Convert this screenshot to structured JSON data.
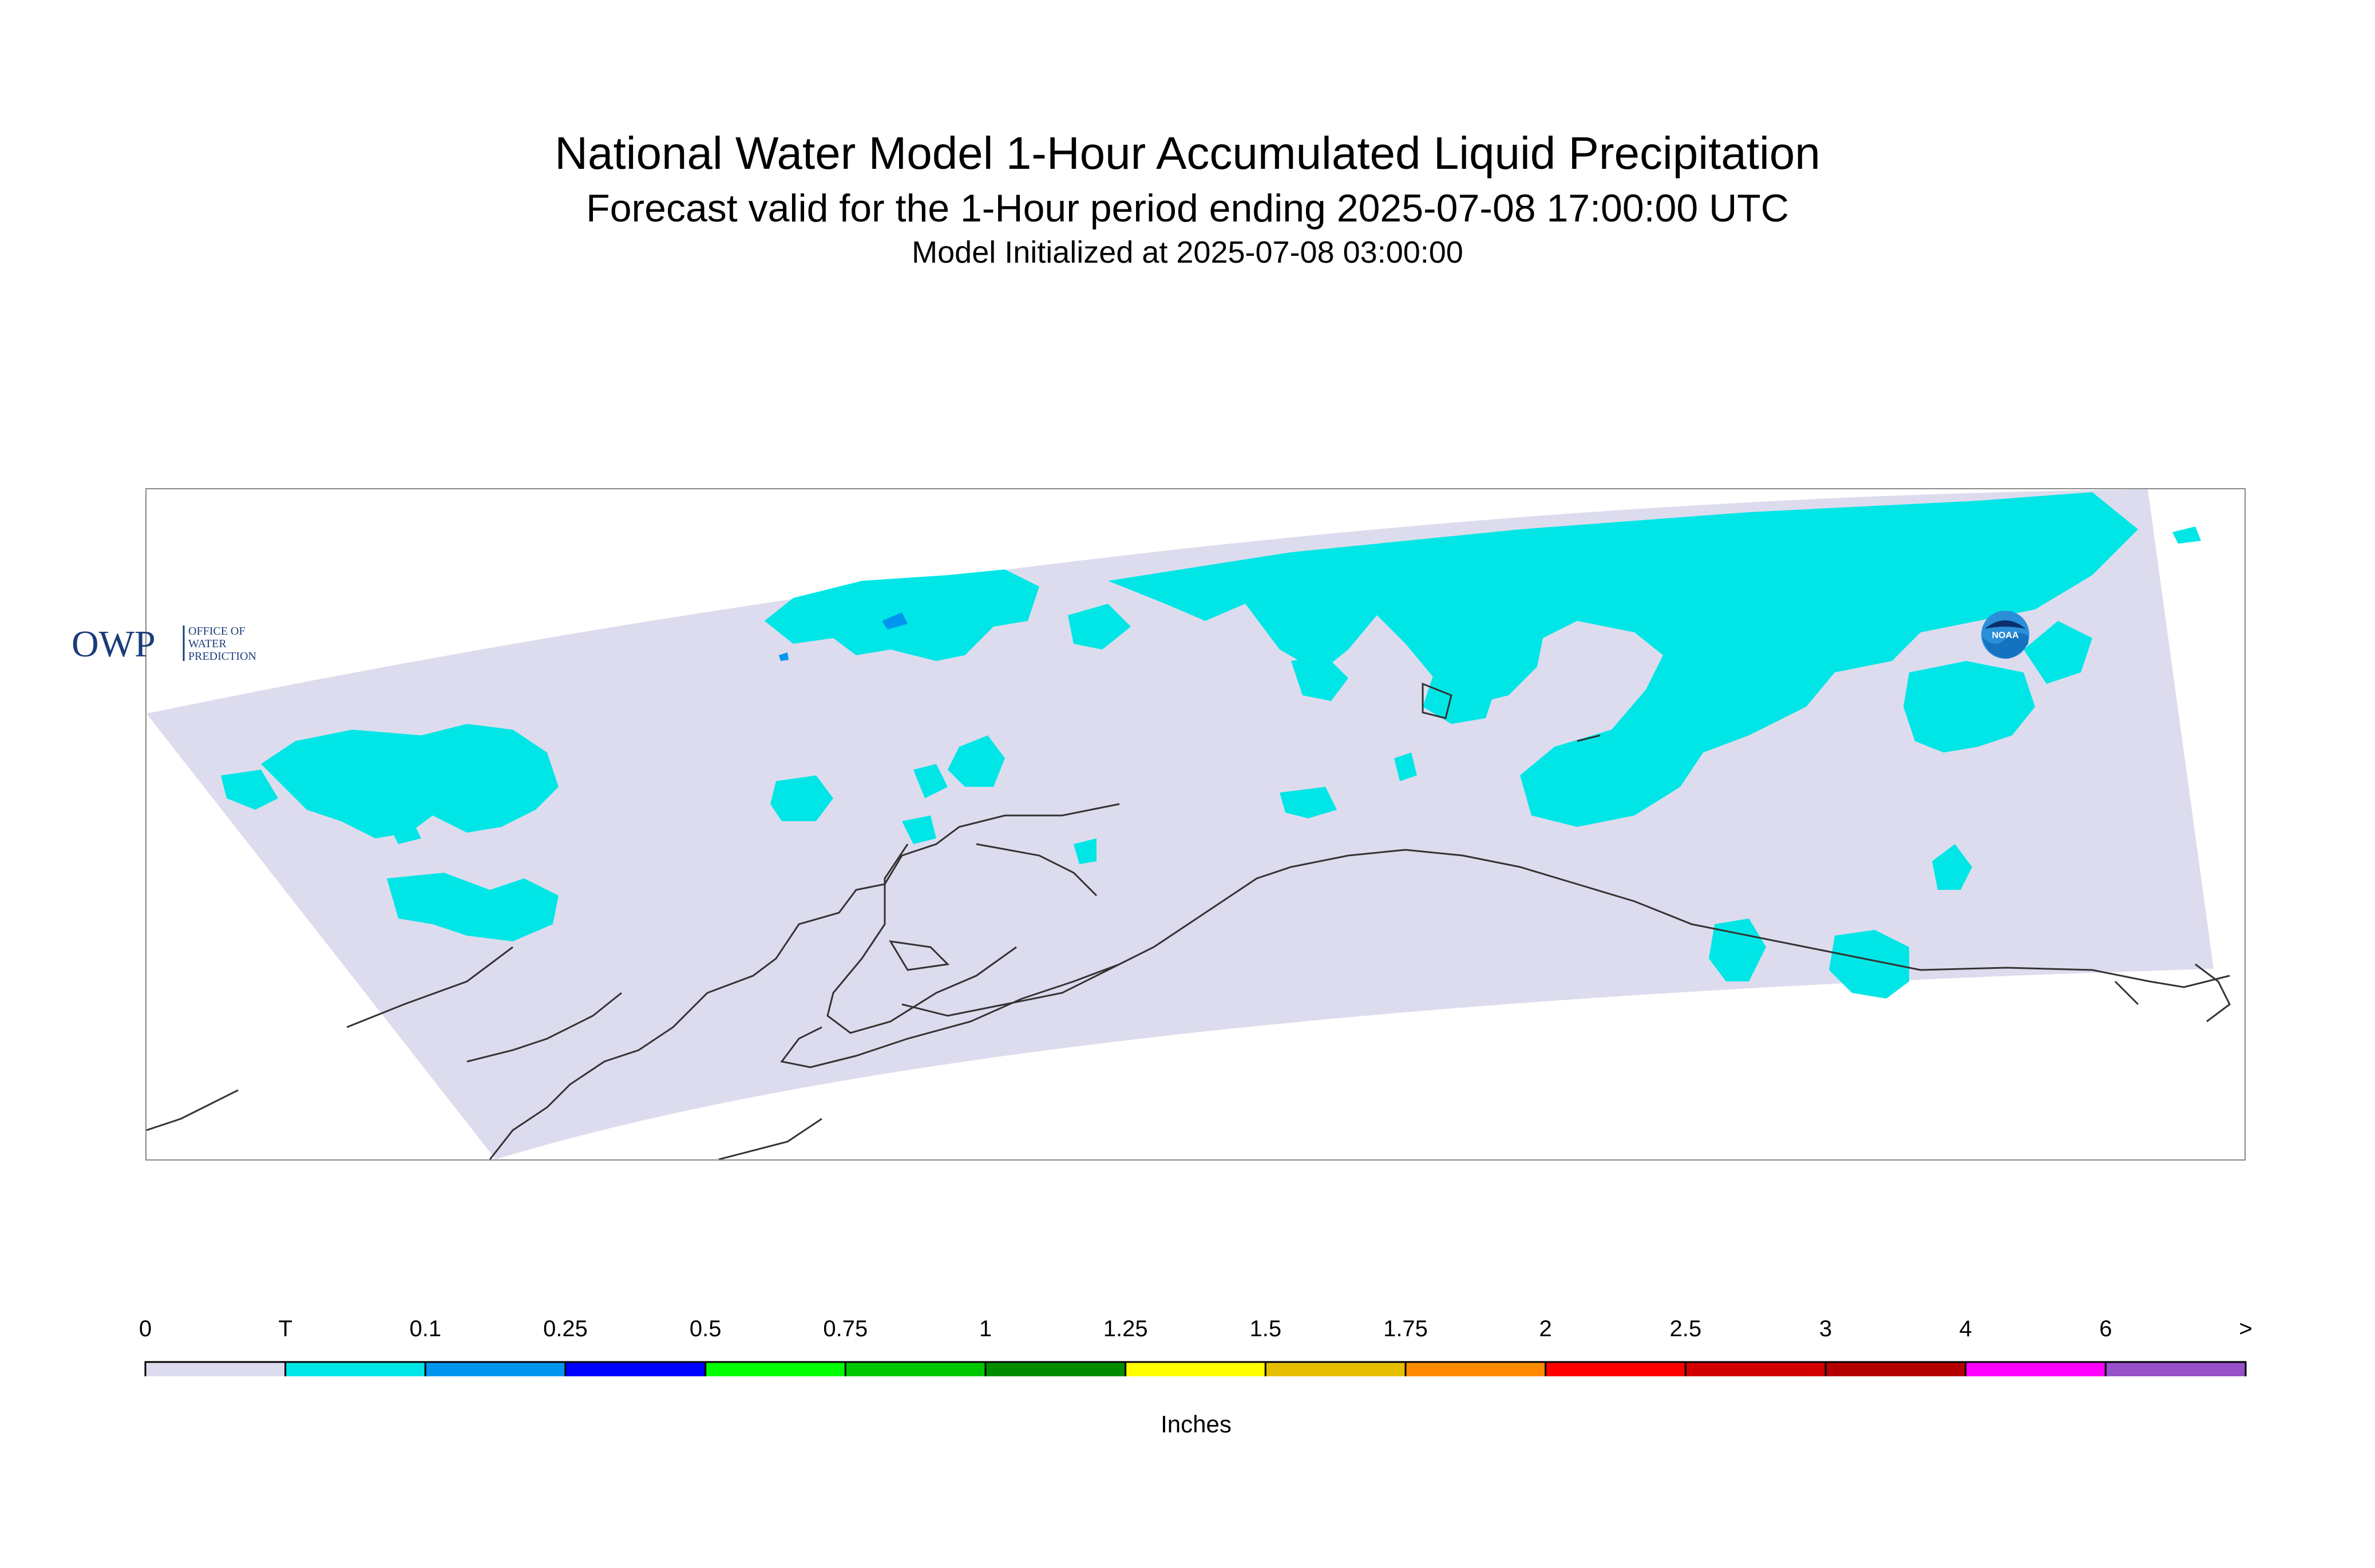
{
  "header": {
    "title": "National Water Model 1-Hour Accumulated Liquid Precipitation",
    "subtitle": "Forecast valid for the 1-Hour period ending 2025-07-08 17:00:00 UTC",
    "init": "Model Initialized at 2025-07-08 03:00:00"
  },
  "map": {
    "domain_fill": "#dcdcee",
    "precip_trace_color": "#00e6e6",
    "precip_light_color": "#0096f0",
    "coastline_color": "#333333"
  },
  "logos": {
    "owp_text": "OWP",
    "owp_sub": [
      "OFFICE OF",
      "WATER",
      "PREDICTION"
    ],
    "noaa_text": "NOAA"
  },
  "legend": {
    "labels": [
      "0",
      "T",
      "0.1",
      "0.25",
      "0.5",
      "0.75",
      "1",
      "1.25",
      "1.5",
      "1.75",
      "2",
      "2.5",
      "3",
      "4",
      "6",
      ">"
    ],
    "colors": [
      "#dcdcee",
      "#00e6e6",
      "#0096f0",
      "#0000ff",
      "#00ff00",
      "#00c800",
      "#008c00",
      "#ffff00",
      "#e6be00",
      "#ff8c00",
      "#ff0000",
      "#d20000",
      "#b40000",
      "#ff00ff",
      "#9650c8"
    ],
    "units": "Inches"
  }
}
